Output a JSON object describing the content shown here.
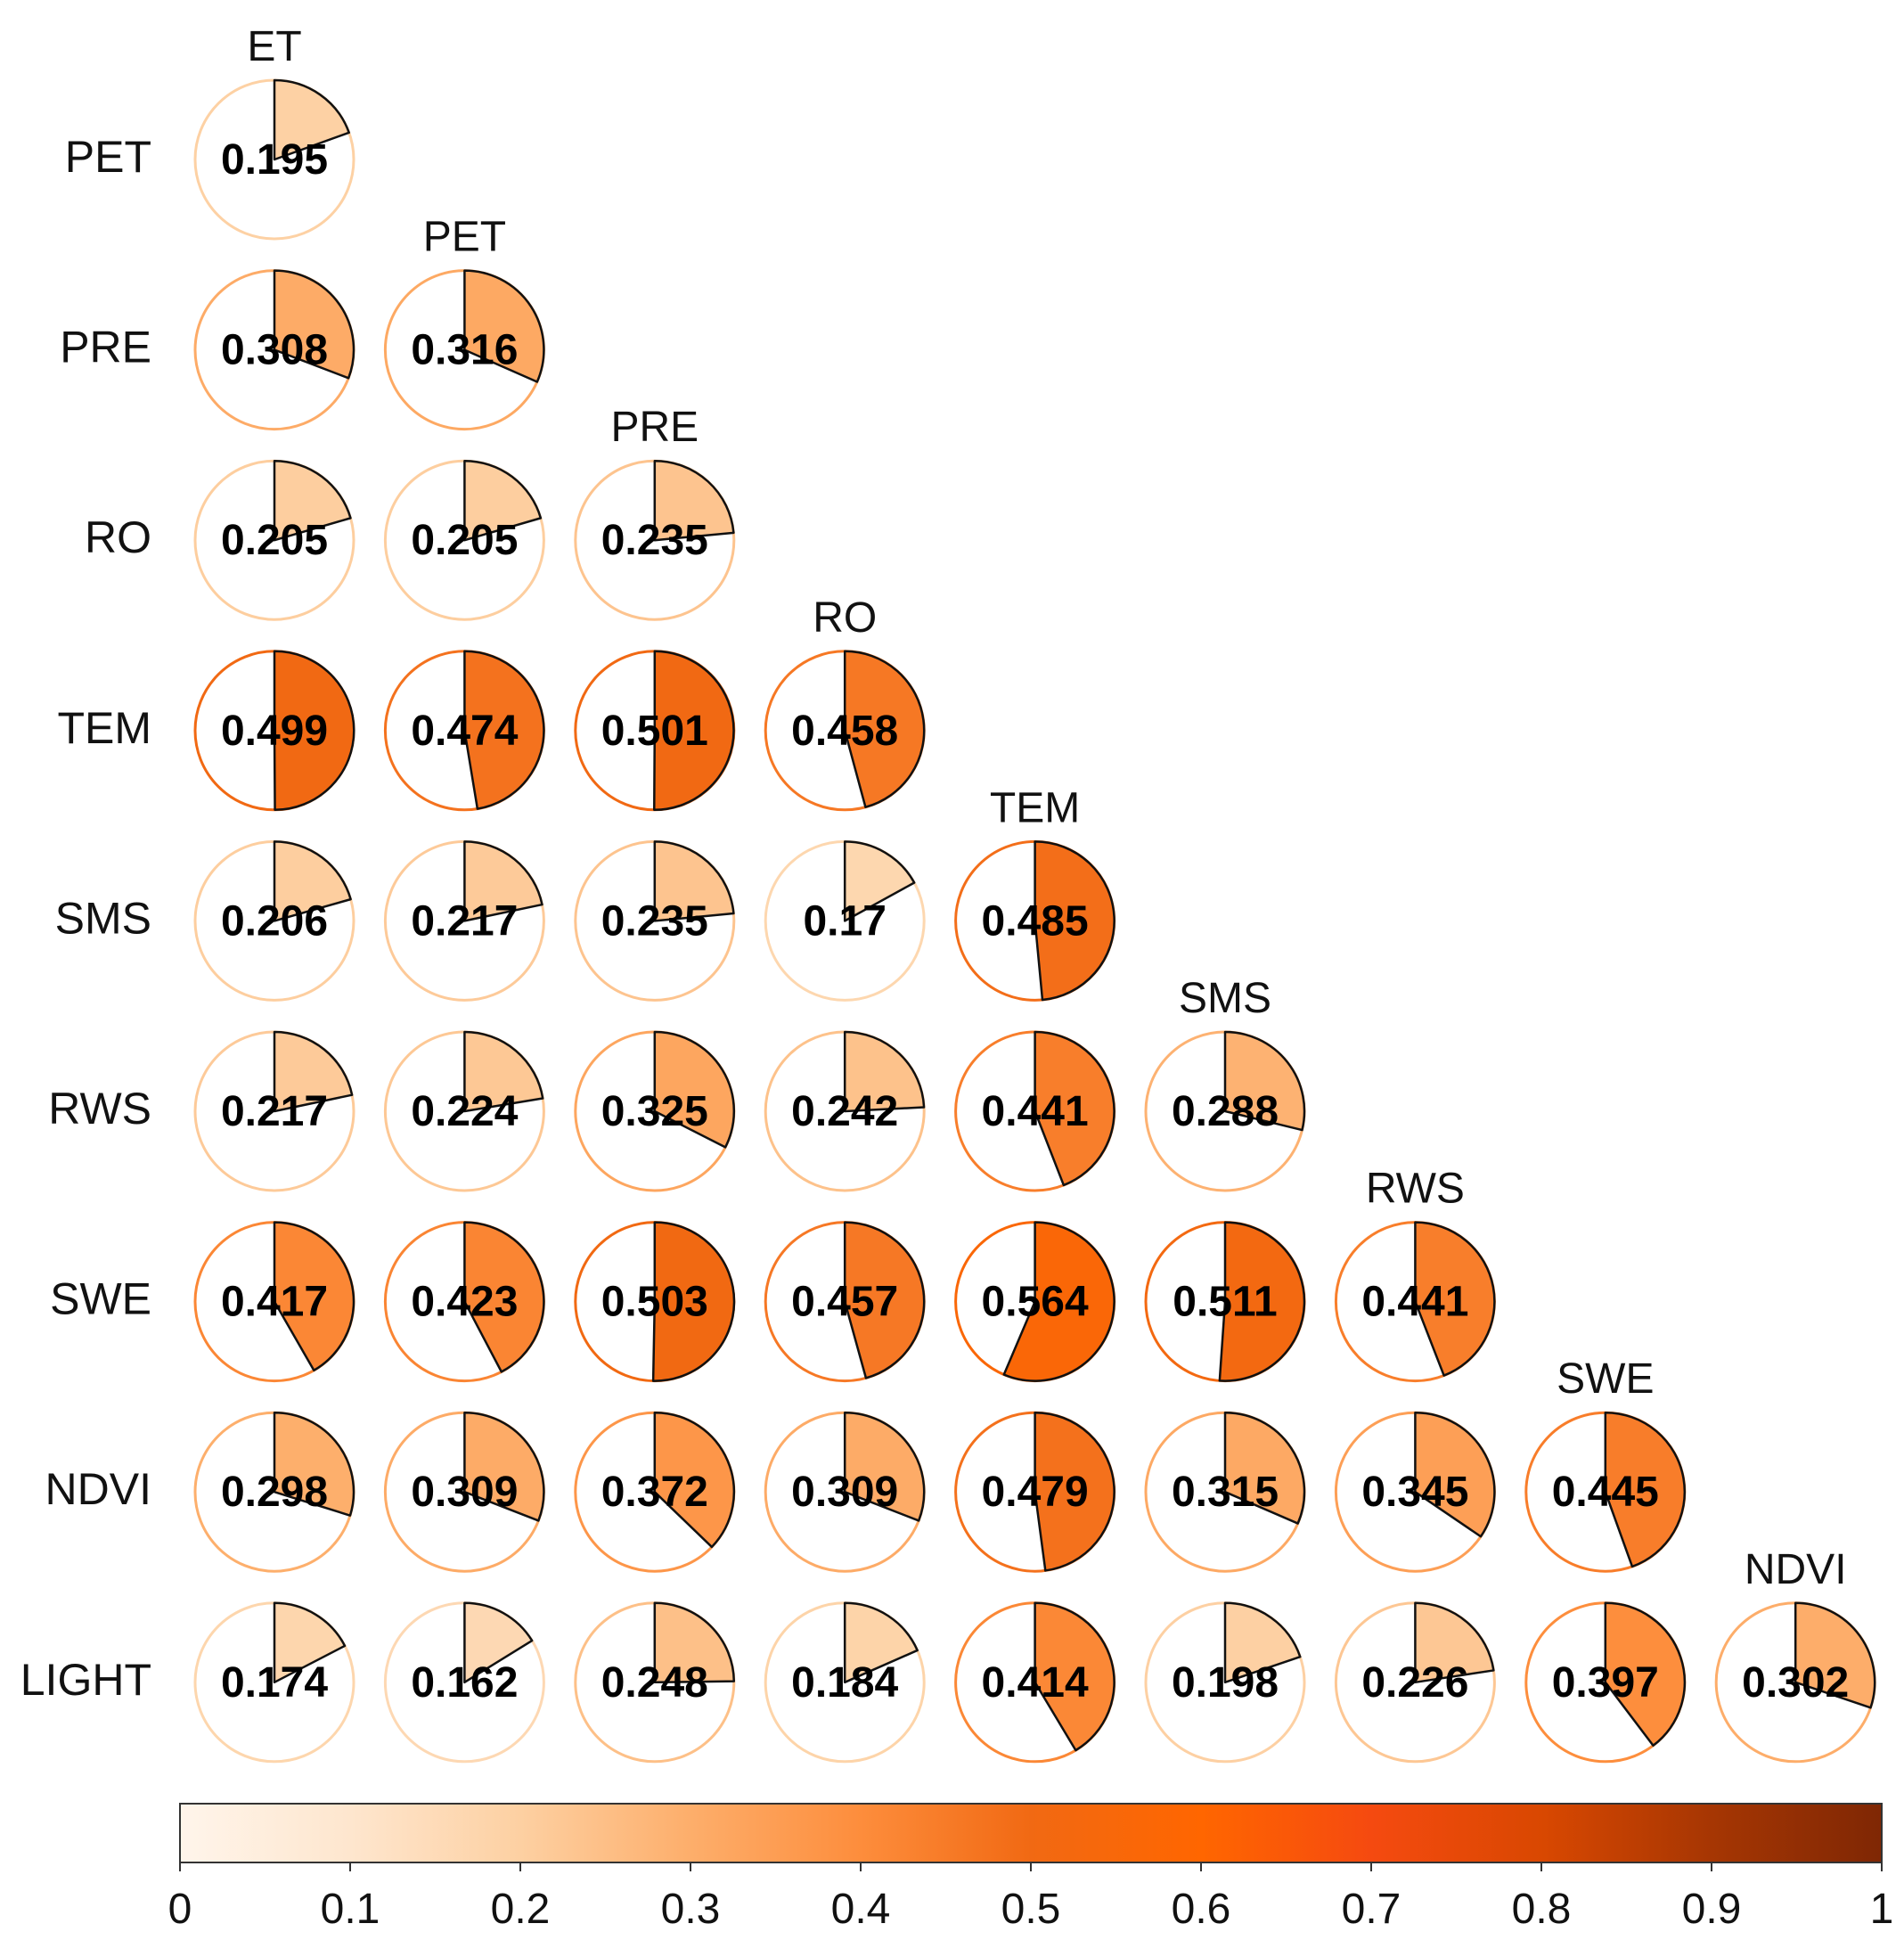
{
  "chart_data": {
    "type": "correlation-pie-matrix",
    "title": "",
    "row_labels": [
      "PET",
      "PRE",
      "RO",
      "TEM",
      "SMS",
      "RWS",
      "SWE",
      "NDVI",
      "LIGHT"
    ],
    "column_labels": [
      "ET",
      "PET",
      "PRE",
      "RO",
      "TEM",
      "SMS",
      "RWS",
      "SWE",
      "NDVI"
    ],
    "values": [
      [
        0.195
      ],
      [
        0.308,
        0.316
      ],
      [
        0.205,
        0.205,
        0.235
      ],
      [
        0.499,
        0.474,
        0.501,
        0.458
      ],
      [
        0.206,
        0.217,
        0.235,
        0.17,
        0.485
      ],
      [
        0.217,
        0.224,
        0.325,
        0.242,
        0.441,
        0.288
      ],
      [
        0.417,
        0.423,
        0.503,
        0.457,
        0.564,
        0.511,
        0.441
      ],
      [
        0.298,
        0.309,
        0.372,
        0.309,
        0.479,
        0.315,
        0.345,
        0.445
      ],
      [
        0.174,
        0.162,
        0.248,
        0.184,
        0.414,
        0.198,
        0.226,
        0.397,
        0.302
      ]
    ],
    "colorbar": {
      "range": [
        0,
        1
      ],
      "ticks": [
        "0",
        "0.1",
        "0.2",
        "0.3",
        "0.4",
        "0.5",
        "0.6",
        "0.7",
        "0.8",
        "0.9",
        "1"
      ],
      "colors": [
        "#fff5eb",
        "#fee6ce",
        "#fdd0a2",
        "#fdae6b",
        "#fd8d3c",
        "#f16913",
        "#ff6600",
        "#f54a10",
        "#d94801",
        "#a63603",
        "#7f2704"
      ],
      "orientation": "horizontal",
      "position": "bottom"
    }
  }
}
